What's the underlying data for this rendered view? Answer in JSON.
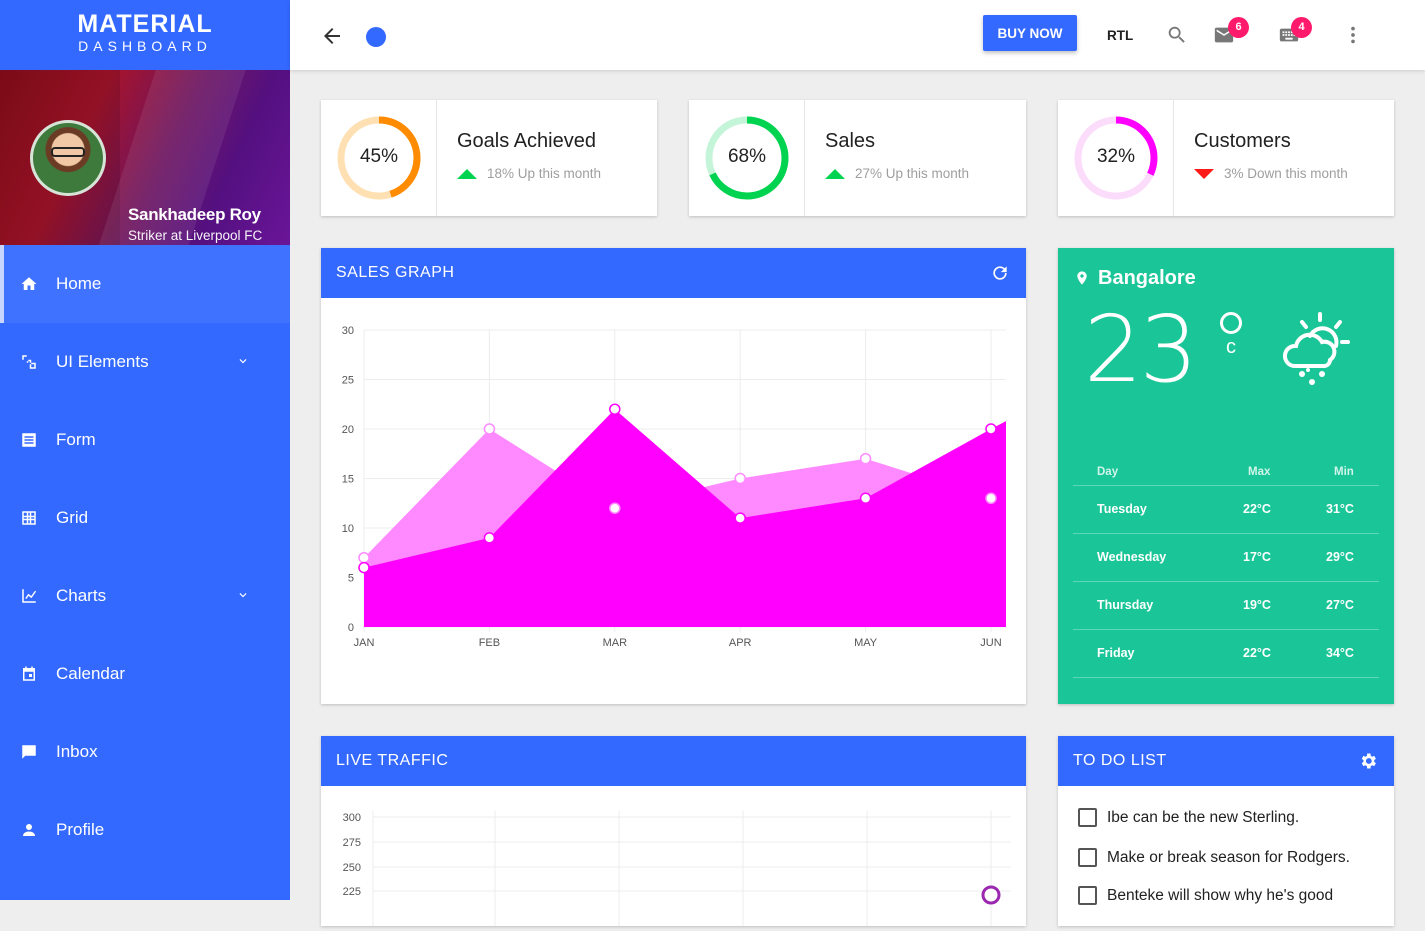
{
  "brand": {
    "title": "MATERIAL",
    "subtitle": "DASHBOARD"
  },
  "profile": {
    "name": "Sankhadeep Roy",
    "role": "Striker at Liverpool FC"
  },
  "nav": [
    {
      "label": "Home",
      "icon": "home-icon",
      "expandable": false
    },
    {
      "label": "UI Elements",
      "icon": "layers-icon",
      "expandable": true
    },
    {
      "label": "Form",
      "icon": "form-icon",
      "expandable": false
    },
    {
      "label": "Grid",
      "icon": "grid-icon",
      "expandable": false
    },
    {
      "label": "Charts",
      "icon": "chart-icon",
      "expandable": true
    },
    {
      "label": "Calendar",
      "icon": "calendar-icon",
      "expandable": false
    },
    {
      "label": "Inbox",
      "icon": "message-icon",
      "expandable": false
    },
    {
      "label": "Profile",
      "icon": "person-icon",
      "expandable": false
    }
  ],
  "topbar": {
    "buy_label": "BUY NOW",
    "rtl_label": "RTL",
    "mail_count": "6",
    "keyboard_count": "4"
  },
  "stats": [
    {
      "pct": "45%",
      "value": 0.45,
      "label": "Goals Achieved",
      "sub": "18% Up this month",
      "trend": "up",
      "color": "#ff8c00",
      "track": "#ffe0b3"
    },
    {
      "pct": "68%",
      "value": 0.68,
      "label": "Sales",
      "sub": "27% Up this month",
      "trend": "up",
      "color": "#00d34f",
      "track": "#c5f5d8"
    },
    {
      "pct": "32%",
      "value": 0.32,
      "label": "Customers",
      "sub": "3% Down this month",
      "trend": "down",
      "color": "#ff00ff",
      "track": "#fbdcfb"
    }
  ],
  "sales_graph": {
    "title": "SALES GRAPH"
  },
  "chart_data": {
    "type": "area",
    "categories": [
      "JAN",
      "FEB",
      "MAR",
      "APR",
      "MAY",
      "JUN"
    ],
    "ylim": [
      0,
      30
    ],
    "yticks": [
      0,
      5,
      10,
      15,
      20,
      25,
      30
    ],
    "series": [
      {
        "color": "#ff8aff",
        "values": [
          7,
          20,
          12,
          15,
          17,
          13
        ]
      },
      {
        "color": "#ff00ff",
        "values": [
          6,
          9,
          22,
          11,
          13,
          20
        ]
      }
    ]
  },
  "weather": {
    "city": "Bangalore",
    "temp": "23",
    "unit": "c",
    "columns": [
      "Day",
      "Max",
      "Min"
    ],
    "rows": [
      {
        "day": "Tuesday",
        "max": "22°C",
        "min": "31°C"
      },
      {
        "day": "Wednesday",
        "max": "17°C",
        "min": "29°C"
      },
      {
        "day": "Thursday",
        "max": "19°C",
        "min": "27°C"
      },
      {
        "day": "Friday",
        "max": "22°C",
        "min": "34°C"
      }
    ]
  },
  "traffic": {
    "title": "LIVE TRAFFIC",
    "yticks": [
      "300",
      "275",
      "250",
      "225"
    ]
  },
  "todo": {
    "title": "TO DO LIST",
    "items": [
      "Ibe can be the new Sterling.",
      "Make or break season for Rodgers.",
      "Benteke will show why he's good"
    ]
  }
}
